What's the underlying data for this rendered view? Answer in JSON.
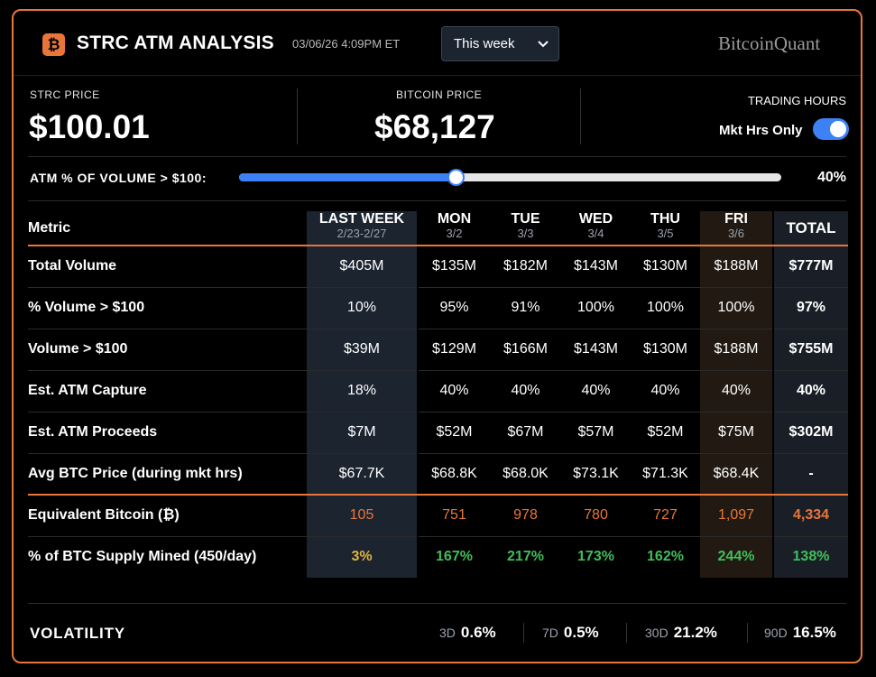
{
  "header": {
    "title": "STRC ATM ANALYSIS",
    "timestamp": "03/06/26 4:09PM ET",
    "period_selected": "This week",
    "brand": "BitcoinQuant",
    "logo_glyph": "₿"
  },
  "prices": {
    "strc_label": "STRC PRICE",
    "strc_value": "$100.01",
    "btc_label": "BITCOIN PRICE",
    "btc_value": "$68,127",
    "trading_hours_label": "TRADING HOURS",
    "mkt_hrs_label": "Mkt Hrs Only",
    "mkt_hrs_enabled": true
  },
  "slider": {
    "label": "ATM % OF VOLUME > $100:",
    "value_text": "40%",
    "fraction": 0.4
  },
  "table": {
    "metric_header": "Metric",
    "columns": [
      {
        "day": "LAST WEEK",
        "date": "2/23-2/27"
      },
      {
        "day": "MON",
        "date": "3/2"
      },
      {
        "day": "TUE",
        "date": "3/3"
      },
      {
        "day": "WED",
        "date": "3/4"
      },
      {
        "day": "THU",
        "date": "3/5"
      },
      {
        "day": "FRI",
        "date": "3/6"
      }
    ],
    "total_header": "TOTAL",
    "rows": [
      {
        "name": "Total Volume",
        "values": [
          "$405M",
          "$135M",
          "$182M",
          "$143M",
          "$130M",
          "$188M"
        ],
        "total": "$777M"
      },
      {
        "name": "% Volume > $100",
        "values": [
          "10%",
          "95%",
          "91%",
          "100%",
          "100%",
          "100%"
        ],
        "total": "97%"
      },
      {
        "name": "Volume > $100",
        "values": [
          "$39M",
          "$129M",
          "$166M",
          "$143M",
          "$130M",
          "$188M"
        ],
        "total": "$755M"
      },
      {
        "name": "Est. ATM Capture",
        "values": [
          "18%",
          "40%",
          "40%",
          "40%",
          "40%",
          "40%"
        ],
        "total": "40%"
      },
      {
        "name": "Est. ATM Proceeds",
        "values": [
          "$7M",
          "$52M",
          "$67M",
          "$57M",
          "$52M",
          "$75M"
        ],
        "total": "$302M"
      },
      {
        "name": "Avg BTC Price (during mkt hrs)",
        "values": [
          "$67.7K",
          "$68.8K",
          "$68.0K",
          "$73.1K",
          "$71.3K",
          "$68.4K"
        ],
        "total": "-"
      },
      {
        "name": "Equivalent Bitcoin (₿)",
        "values": [
          "105",
          "751",
          "978",
          "780",
          "727",
          "1,097"
        ],
        "total": "4,334"
      },
      {
        "name": "% of BTC Supply Mined (450/day)",
        "values": [
          "3%",
          "167%",
          "217%",
          "173%",
          "162%",
          "244%"
        ],
        "total": "138%"
      }
    ]
  },
  "volatility": {
    "label": "VOLATILITY",
    "items": [
      {
        "key": "3D",
        "value": "0.6%"
      },
      {
        "key": "7D",
        "value": "0.5%"
      },
      {
        "key": "30D",
        "value": "21.2%"
      },
      {
        "key": "90D",
        "value": "16.5%"
      }
    ]
  },
  "colors": {
    "accent": "#e8763b",
    "toggle": "#3c82f6",
    "positive": "#3fbf5a",
    "warning": "#e0b341"
  }
}
